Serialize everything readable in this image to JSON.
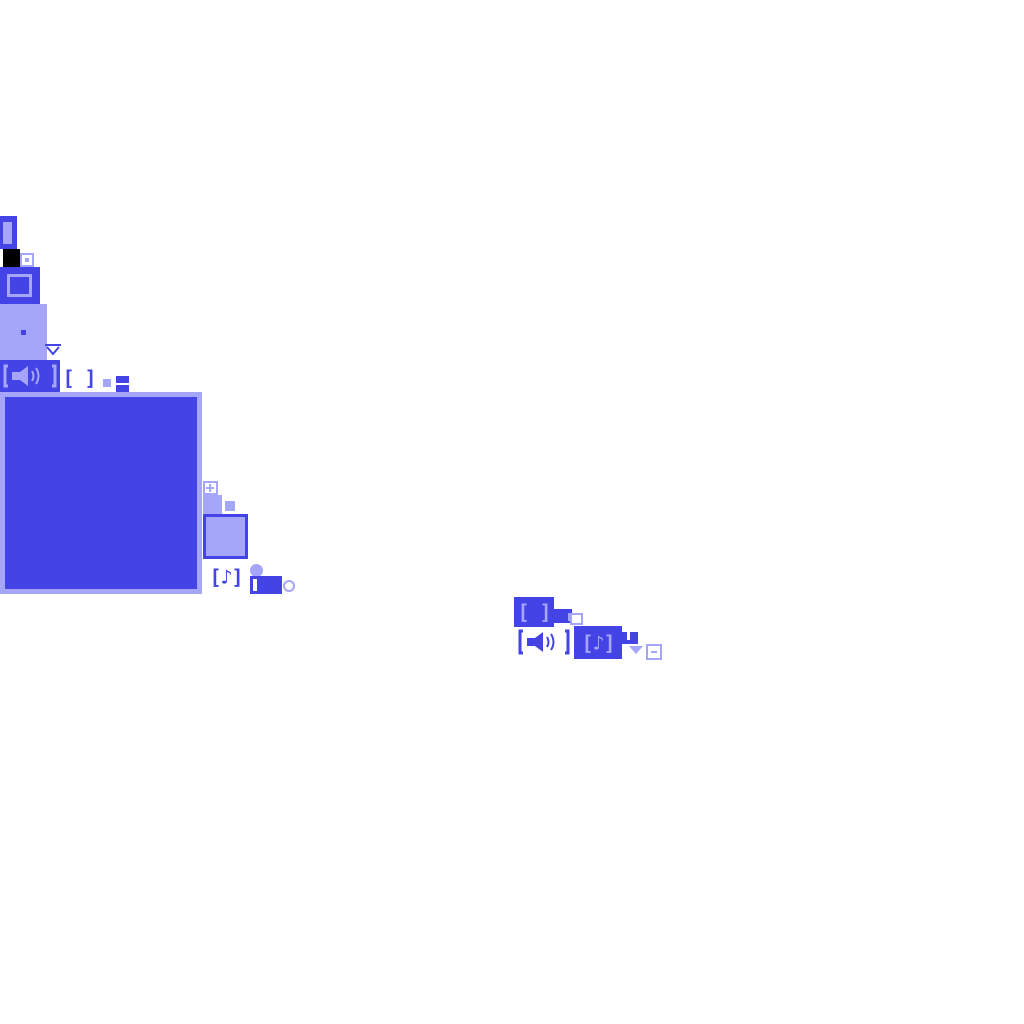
{
  "palette": {
    "dark": "#4343e6",
    "light": "#a5a5fa",
    "black": "#000000",
    "background": "#ffffff"
  },
  "left_stack": {
    "speaker_button": {
      "label": "[◀))]",
      "icon": "speaker-icon"
    },
    "bracket_button": {
      "label": "[ ]"
    },
    "music_button": {
      "label": "[♪]",
      "icon": "music-note-icon"
    },
    "plus_icon": "plus-icon",
    "chevron_icon": "chevron-down-icon"
  },
  "right_cluster": {
    "bracket_button": {
      "label": "[ ]"
    },
    "speaker_button": {
      "label": "[◀))]",
      "icon": "speaker-icon"
    },
    "music_button": {
      "label": "[♪]",
      "icon": "music-note-icon"
    },
    "dropdown_icon": "triangle-down-icon",
    "minus_icon": "minus-icon"
  }
}
